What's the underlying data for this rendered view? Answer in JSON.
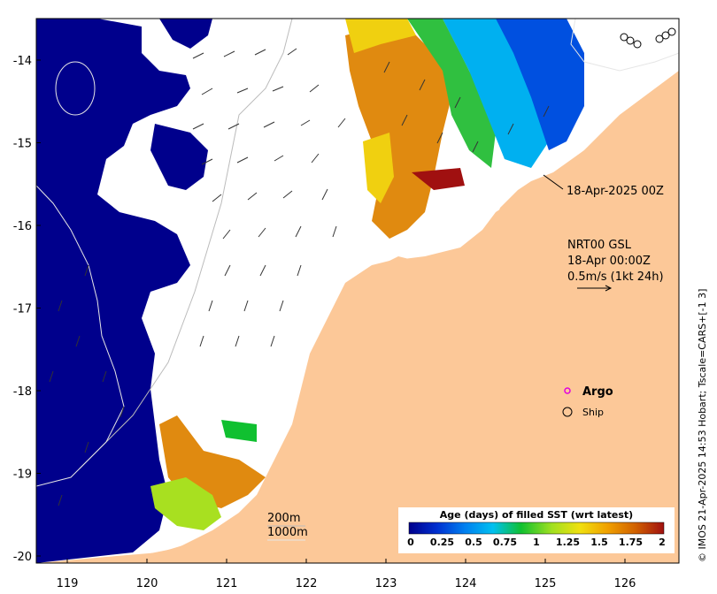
{
  "map": {
    "x_ticks": [
      "119",
      "120",
      "121",
      "122",
      "123",
      "124",
      "125",
      "126"
    ],
    "y_ticks": [
      "-14",
      "-15",
      "-16",
      "-17",
      "-18",
      "-19",
      "-20"
    ],
    "colors": {
      "land": "#fcc898",
      "ocean_old": "#00008c",
      "no_data": "#ffffff"
    }
  },
  "annotations": {
    "date_pointer": "18-Apr-2025 00Z",
    "current_title": "NRT00 GSL",
    "current_time": "18-Apr 00:00Z",
    "current_scale": "0.5m/s (1kt 24h)",
    "argo_label": "Argo",
    "ship_label": "Ship",
    "depth_200": "200m",
    "depth_1000": "1000m",
    "credit": "© IMOS 21-Apr-2025 14:53 Hobart; Tscale=CARS+[-1 3]"
  },
  "colorbar": {
    "title": "Age (days) of filled SST (wrt latest)",
    "labels": [
      "0",
      "0.25",
      "0.5",
      "0.75",
      "1",
      "1.25",
      "1.5",
      "1.75",
      "2"
    ],
    "stops": [
      "#00008c",
      "#0040e0",
      "#00a0f0",
      "#00c8c8",
      "#10c030",
      "#a0e020",
      "#f0e010",
      "#f0a000",
      "#d06000",
      "#a01010"
    ]
  }
}
